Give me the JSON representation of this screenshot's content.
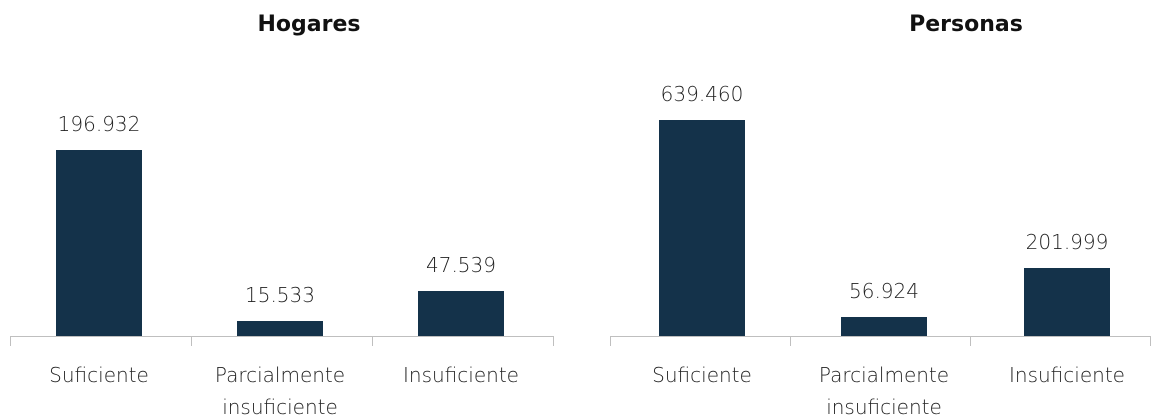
{
  "chart_data": [
    {
      "type": "bar",
      "title": "Hogares",
      "categories": [
        "Suficiente",
        "Parcialmente insuficiente",
        "Insuficiente"
      ],
      "values": [
        196932,
        15533,
        47539
      ],
      "value_labels": [
        "196.932",
        "15.533",
        "47.539"
      ],
      "color": "#14324a"
    },
    {
      "type": "bar",
      "title": "Personas",
      "categories": [
        "Suficiente",
        "Parcialmente insuficiente",
        "Insuficiente"
      ],
      "values": [
        639460,
        56924,
        201999
      ],
      "value_labels": [
        "639.460",
        "56.924",
        "201.999"
      ],
      "color": "#14324a"
    }
  ]
}
